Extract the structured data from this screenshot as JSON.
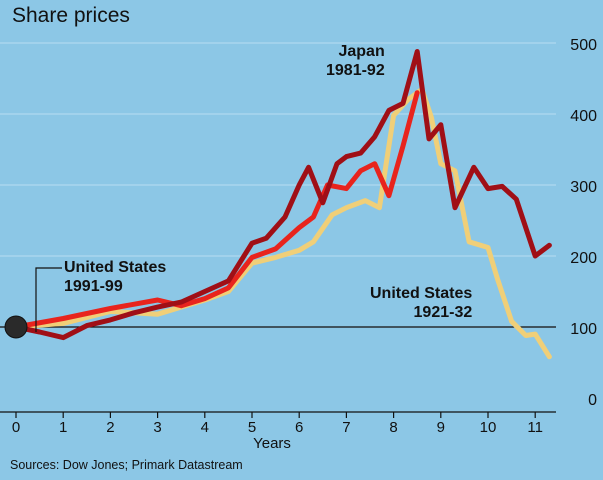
{
  "title": "Share prices",
  "source": "Sources: Dow Jones; Primark Datastream",
  "annotations": {
    "japan": {
      "line1": "Japan",
      "line2": "1981-92"
    },
    "us90s": {
      "line1": "United States",
      "line2": "1991-99"
    },
    "us20s": {
      "line1": "United States",
      "line2": "1921-32"
    }
  },
  "colors": {
    "background": "#8cc7e6",
    "japan": "#a00f16",
    "us90s": "#e8241d",
    "us20s": "#f0cf78",
    "baseline": "#0a0a0a",
    "grid": "#a9d6ee"
  },
  "chart_data": {
    "type": "line",
    "title": "Share prices",
    "xlabel": "Years",
    "ylabel": "",
    "xlim": [
      0,
      11.5
    ],
    "ylim": [
      0,
      550
    ],
    "x_ticks": [
      0,
      1,
      2,
      3,
      4,
      5,
      6,
      7,
      8,
      9,
      10,
      11
    ],
    "y_ticks": [
      0,
      100,
      200,
      300,
      400,
      500
    ],
    "baseline": 100,
    "start_marker": {
      "x": 0,
      "y": 100
    },
    "series": [
      {
        "name": "Japan 1981-92",
        "x": [
          0,
          0.5,
          1,
          1.5,
          2,
          2.5,
          3,
          3.5,
          4,
          4.5,
          5,
          5.3,
          5.7,
          6,
          6.2,
          6.5,
          6.8,
          7,
          7.3,
          7.6,
          7.9,
          8.2,
          8.5,
          8.75,
          9,
          9.3,
          9.7,
          10,
          10.3,
          10.6,
          11,
          11.3
        ],
        "y": [
          100,
          93,
          85,
          102,
          110,
          120,
          128,
          135,
          150,
          165,
          218,
          225,
          255,
          300,
          325,
          275,
          330,
          340,
          345,
          368,
          405,
          415,
          488,
          365,
          385,
          268,
          325,
          295,
          298,
          280,
          200,
          215
        ]
      },
      {
        "name": "United States 1991-99",
        "x": [
          0,
          1,
          2,
          3,
          3.5,
          4,
          4.5,
          5,
          5.5,
          6,
          6.3,
          6.6,
          7,
          7.3,
          7.6,
          7.9,
          8.2,
          8.5
        ],
        "y": [
          100,
          112,
          126,
          138,
          130,
          140,
          155,
          198,
          210,
          240,
          255,
          300,
          295,
          320,
          330,
          285,
          355,
          430
        ]
      },
      {
        "name": "United States 1921-32",
        "x": [
          0,
          1,
          2,
          3,
          4,
          4.5,
          5,
          5.5,
          6,
          6.3,
          6.7,
          7,
          7.4,
          7.7,
          8,
          8.3,
          8.6,
          8.8,
          9,
          9.3,
          9.6,
          10,
          10.2,
          10.5,
          10.8,
          11,
          11.3
        ],
        "y": [
          100,
          105,
          122,
          118,
          138,
          150,
          190,
          198,
          208,
          220,
          258,
          268,
          278,
          268,
          398,
          420,
          435,
          395,
          330,
          320,
          220,
          212,
          168,
          108,
          88,
          90,
          58
        ]
      }
    ]
  }
}
